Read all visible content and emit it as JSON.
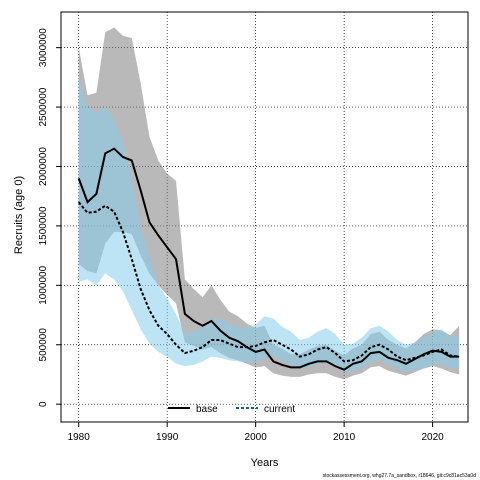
{
  "chart_data": {
    "type": "line",
    "xlabel": "Years",
    "ylabel": "Recruits (age 0)",
    "footer": "stockassessment.org, whg27.7a_sandbox, r18646, git:c9c81ac53a0d",
    "xlim": [
      1978,
      2024
    ],
    "ylim": [
      -150000,
      3300000
    ],
    "xticks": [
      1980,
      1990,
      2000,
      2010,
      2020
    ],
    "yticks": [
      0,
      500000,
      1000000,
      1500000,
      2000000,
      2500000,
      3000000
    ],
    "grid": true,
    "legend": {
      "position": "bottom-center",
      "entries": [
        "base",
        "current"
      ]
    },
    "colors": {
      "base_band": "#7f7f7f",
      "base_line": "#000000",
      "current_band": "#87ceeb",
      "current_line": "#000000",
      "grid": "#000000",
      "axis": "#000000"
    },
    "series": [
      {
        "name": "base",
        "line_style": "solid",
        "x": [
          1980,
          1981,
          1982,
          1983,
          1984,
          1985,
          1986,
          1987,
          1988,
          1989,
          1990,
          1991,
          1992,
          1993,
          1994,
          1995,
          1996,
          1997,
          1998,
          1999,
          2000,
          2001,
          2002,
          2003,
          2004,
          2005,
          2006,
          2007,
          2008,
          2009,
          2010,
          2011,
          2012,
          2013,
          2014,
          2015,
          2016,
          2017,
          2018,
          2019,
          2020,
          2021,
          2022,
          2023
        ],
        "values": [
          1900000,
          1700000,
          1770000,
          2110000,
          2150000,
          2080000,
          2050000,
          1800000,
          1530000,
          1420000,
          1320000,
          1220000,
          760000,
          700000,
          660000,
          700000,
          620000,
          560000,
          530000,
          480000,
          440000,
          460000,
          360000,
          330000,
          310000,
          310000,
          340000,
          360000,
          360000,
          320000,
          290000,
          340000,
          360000,
          430000,
          440000,
          390000,
          370000,
          340000,
          380000,
          420000,
          450000,
          440000,
          400000,
          400000
        ],
        "lower": [
          1180000,
          1120000,
          1100000,
          1350000,
          1450000,
          1450000,
          1430000,
          1250000,
          1100000,
          1000000,
          920000,
          850000,
          520000,
          490000,
          460000,
          480000,
          430000,
          390000,
          370000,
          340000,
          310000,
          320000,
          260000,
          240000,
          230000,
          230000,
          250000,
          260000,
          260000,
          230000,
          210000,
          240000,
          260000,
          310000,
          320000,
          280000,
          260000,
          240000,
          270000,
          300000,
          320000,
          300000,
          270000,
          250000
        ],
        "upper": [
          3000000,
          2600000,
          2620000,
          3130000,
          3170000,
          3100000,
          3080000,
          2700000,
          2250000,
          2050000,
          1940000,
          1880000,
          1050000,
          970000,
          900000,
          1000000,
          880000,
          780000,
          740000,
          680000,
          640000,
          660000,
          500000,
          470000,
          420000,
          420000,
          460000,
          490000,
          500000,
          450000,
          410000,
          470000,
          500000,
          590000,
          610000,
          540000,
          500000,
          470000,
          520000,
          590000,
          630000,
          620000,
          580000,
          660000
        ]
      },
      {
        "name": "current",
        "line_style": "dashed",
        "x": [
          1980,
          1981,
          1982,
          1983,
          1984,
          1985,
          1986,
          1987,
          1988,
          1989,
          1990,
          1991,
          1992,
          1993,
          1994,
          1995,
          1996,
          1997,
          1998,
          1999,
          2000,
          2001,
          2002,
          2003,
          2004,
          2005,
          2006,
          2007,
          2008,
          2009,
          2010,
          2011,
          2012,
          2013,
          2014,
          2015,
          2016,
          2017,
          2018,
          2019,
          2020,
          2021,
          2022,
          2023
        ],
        "values": [
          1700000,
          1610000,
          1620000,
          1670000,
          1620000,
          1450000,
          1220000,
          970000,
          790000,
          660000,
          590000,
          500000,
          430000,
          450000,
          480000,
          540000,
          540000,
          510000,
          480000,
          480000,
          490000,
          520000,
          540000,
          500000,
          460000,
          400000,
          420000,
          460000,
          480000,
          430000,
          360000,
          370000,
          410000,
          480000,
          500000,
          460000,
          400000,
          370000,
          390000,
          410000,
          440000,
          460000,
          410000,
          400000
        ],
        "lower": [
          1030000,
          1050000,
          1000000,
          1100000,
          1050000,
          950000,
          790000,
          630000,
          510000,
          440000,
          400000,
          340000,
          320000,
          330000,
          360000,
          400000,
          390000,
          370000,
          360000,
          350000,
          360000,
          380000,
          400000,
          370000,
          330000,
          300000,
          310000,
          340000,
          350000,
          310000,
          270000,
          280000,
          300000,
          360000,
          380000,
          340000,
          300000,
          270000,
          290000,
          300000,
          330000,
          340000,
          300000,
          300000
        ],
        "upper": [
          2750000,
          2500000,
          2450000,
          2500000,
          2400000,
          2200000,
          1900000,
          1500000,
          1230000,
          1000000,
          890000,
          760000,
          590000,
          610000,
          640000,
          720000,
          720000,
          680000,
          640000,
          640000,
          670000,
          740000,
          720000,
          650000,
          610000,
          540000,
          560000,
          610000,
          640000,
          590000,
          500000,
          510000,
          560000,
          640000,
          660000,
          610000,
          540000,
          500000,
          520000,
          560000,
          600000,
          630000,
          570000,
          560000
        ]
      }
    ]
  }
}
